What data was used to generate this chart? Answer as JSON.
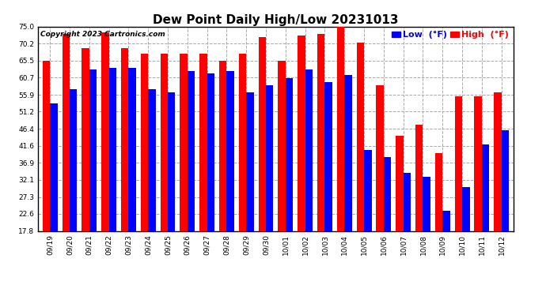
{
  "title": "Dew Point Daily High/Low 20231013",
  "copyright": "Copyright 2023 Cartronics.com",
  "legend_low_label": "Low  (°F)",
  "legend_high_label": "High  (°F)",
  "dates": [
    "09/19",
    "09/20",
    "09/21",
    "09/22",
    "09/23",
    "09/24",
    "09/25",
    "09/26",
    "09/27",
    "09/28",
    "09/29",
    "09/30",
    "10/01",
    "10/02",
    "10/03",
    "10/04",
    "10/05",
    "10/06",
    "10/07",
    "10/08",
    "10/09",
    "10/10",
    "10/11",
    "10/12"
  ],
  "high_values": [
    65.5,
    73.0,
    69.0,
    73.5,
    69.0,
    67.5,
    67.5,
    67.5,
    67.5,
    65.5,
    67.5,
    72.0,
    65.5,
    72.5,
    73.0,
    75.0,
    70.5,
    58.5,
    44.5,
    47.5,
    39.5,
    55.5,
    55.5,
    56.5
  ],
  "low_values": [
    53.5,
    57.5,
    63.0,
    63.5,
    63.5,
    57.5,
    56.5,
    62.5,
    62.0,
    62.5,
    56.5,
    58.5,
    60.5,
    63.0,
    59.5,
    61.5,
    40.5,
    38.5,
    34.0,
    33.0,
    23.5,
    30.0,
    42.0,
    46.0
  ],
  "high_color": "#ff0000",
  "low_color": "#0000ff",
  "bg_color": "#ffffff",
  "grid_color": "#aaaaaa",
  "border_color": "#000000",
  "ylim_min": 17.8,
  "ylim_max": 75.0,
  "yticks": [
    17.8,
    22.6,
    27.3,
    32.1,
    36.9,
    41.6,
    46.4,
    51.2,
    55.9,
    60.7,
    65.5,
    70.2,
    75.0
  ],
  "title_fontsize": 11,
  "copyright_fontsize": 6.5,
  "tick_fontsize": 6.5,
  "legend_fontsize": 8,
  "bar_width": 0.38
}
